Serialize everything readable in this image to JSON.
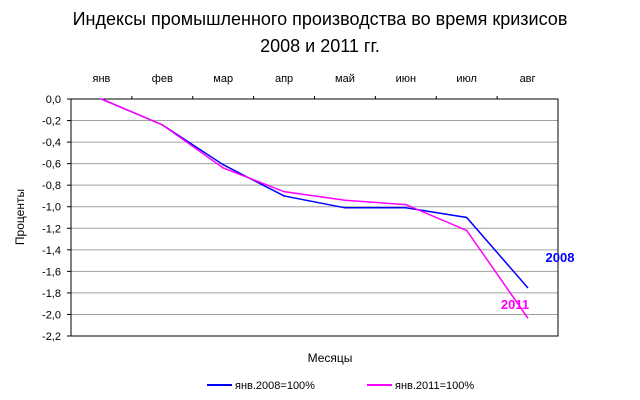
{
  "chart_data": {
    "type": "line",
    "title": [
      "Индексы промышленного производства во время кризисов",
      "2008 и 2011 гг."
    ],
    "xlabel": "Месяцы",
    "ylabel": "Проценты",
    "categories": [
      "янв",
      "фев",
      "мар",
      "апр",
      "май",
      "июн",
      "июл",
      "авг"
    ],
    "yticks": [
      "0,0",
      "-0,2",
      "-0,4",
      "-0,6",
      "-0,8",
      "-1,0",
      "-1,2",
      "-1,4",
      "-1,6",
      "-1,8",
      "-2,0",
      "-2,2"
    ],
    "ylim": [
      -2.2,
      0
    ],
    "grid": true,
    "legend_position": "bottom",
    "series": [
      {
        "name": "янв.2008=100%",
        "label": "2008",
        "color": "#0000ff",
        "values": [
          0,
          -0.24,
          -0.61,
          -0.9,
          -1.01,
          -1.01,
          -1.1,
          -1.75
        ]
      },
      {
        "name": "янв.2011=100%",
        "label": "2011",
        "color": "#ff00ff",
        "values": [
          0,
          -0.24,
          -0.64,
          -0.86,
          -0.94,
          -0.98,
          -1.22,
          -2.03
        ]
      }
    ]
  }
}
